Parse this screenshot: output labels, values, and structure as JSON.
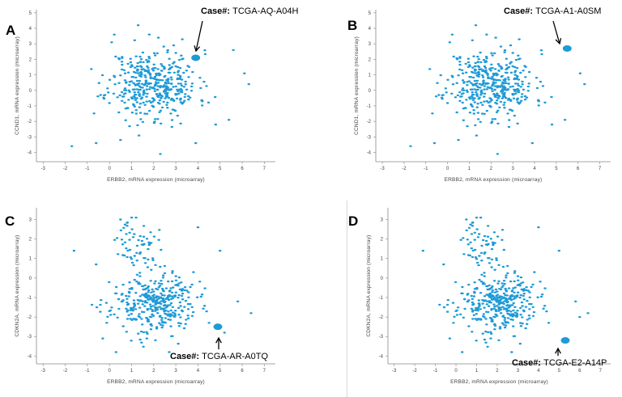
{
  "colors": {
    "point": "#1e9ad6",
    "highlight": "#1e9ad6",
    "axis": "#888888",
    "text": "#444444"
  },
  "chart_data": [
    {
      "panel": "A",
      "type": "scatter",
      "xlabel": "ERBB2, mRNA expression (microarray)",
      "ylabel": "CCND1, mRNA expression (microarray)",
      "xlim": [
        -3.3,
        7.5
      ],
      "ylim": [
        -4.6,
        5.2
      ],
      "xticks": [
        -3,
        -2,
        -1,
        0,
        1,
        2,
        3,
        4,
        5,
        6,
        7
      ],
      "yticks": [
        -4,
        -3,
        -2,
        -1,
        0,
        1,
        2,
        3,
        4,
        5
      ],
      "cloud": {
        "count": 420,
        "seed": 11,
        "cx": 2.0,
        "cy": 0.4,
        "sx": 1.0,
        "sy": 1.1
      },
      "points": [
        [
          -1.7,
          -3.6
        ],
        [
          -0.6,
          -3.4
        ],
        [
          1.3,
          4.2
        ],
        [
          0.1,
          3.1
        ],
        [
          5.6,
          2.6
        ],
        [
          6.1,
          1.1
        ],
        [
          5.4,
          -1.9
        ],
        [
          2.3,
          -4.1
        ],
        [
          3.9,
          -3.4
        ],
        [
          -0.4,
          -0.3
        ],
        [
          6.3,
          0.4
        ],
        [
          4.8,
          -2.2
        ],
        [
          0.5,
          -3.2
        ],
        [
          1.8,
          3.6
        ],
        [
          2.9,
          2.9
        ]
      ],
      "highlight": {
        "x": 3.9,
        "y": 2.1,
        "label_key": "Case#:",
        "label_value": "TCGA-AQ-A04H"
      }
    },
    {
      "panel": "B",
      "type": "scatter",
      "xlabel": "ERBB2, mRNA expression (microarray)",
      "ylabel": "CCND1, mRNA expression (microarray)",
      "xlim": [
        -3.3,
        7.5
      ],
      "ylim": [
        -4.6,
        5.2
      ],
      "xticks": [
        -3,
        -2,
        -1,
        0,
        1,
        2,
        3,
        4,
        5,
        6,
        7
      ],
      "yticks": [
        -4,
        -3,
        -2,
        -1,
        0,
        1,
        2,
        3,
        4,
        5
      ],
      "cloud": {
        "count": 420,
        "seed": 11,
        "cx": 2.0,
        "cy": 0.4,
        "sx": 1.0,
        "sy": 1.1
      },
      "points": [
        [
          -1.7,
          -3.6
        ],
        [
          -0.6,
          -3.4
        ],
        [
          1.3,
          4.2
        ],
        [
          0.1,
          3.1
        ],
        [
          5.6,
          2.6
        ],
        [
          6.1,
          1.1
        ],
        [
          5.4,
          -1.9
        ],
        [
          2.3,
          -4.1
        ],
        [
          3.9,
          -3.4
        ],
        [
          -0.4,
          -0.3
        ],
        [
          6.3,
          0.4
        ],
        [
          4.8,
          -2.2
        ],
        [
          0.5,
          -3.2
        ],
        [
          1.8,
          3.6
        ],
        [
          2.9,
          2.9
        ]
      ],
      "highlight": {
        "x": 5.5,
        "y": 2.7,
        "label_key": "Case#:",
        "label_value": "TCGA-A1-A0SM"
      }
    },
    {
      "panel": "C",
      "type": "scatter",
      "xlabel": "ERBB2, mRNA expression (microarray)",
      "ylabel": "CDKN2A, mRNA expression (microarray)",
      "xlim": [
        -3.3,
        7.5
      ],
      "ylim": [
        -4.4,
        3.6
      ],
      "xticks": [
        -3,
        -2,
        -1,
        0,
        1,
        2,
        3,
        4,
        5,
        6,
        7
      ],
      "yticks": [
        -4,
        -3,
        -2,
        -1,
        0,
        1,
        2,
        3
      ],
      "cloud": {
        "count": 360,
        "seed": 23,
        "cx": 2.0,
        "cy": -1.3,
        "sx": 0.95,
        "sy": 0.75
      },
      "upper": {
        "count": 60,
        "seed": 37,
        "cx": 1.3,
        "cy": 1.7,
        "sx": 0.45,
        "sy": 0.6
      },
      "points": [
        [
          -1.6,
          1.4
        ],
        [
          -0.6,
          0.7
        ],
        [
          0.5,
          3.0
        ],
        [
          1.0,
          3.1
        ],
        [
          4.0,
          2.6
        ],
        [
          5.0,
          1.4
        ],
        [
          5.8,
          -1.2
        ],
        [
          6.4,
          -1.8
        ],
        [
          0.3,
          -3.8
        ],
        [
          -0.3,
          -3.1
        ],
        [
          2.7,
          -3.8
        ],
        [
          4.5,
          -2.3
        ],
        [
          5.2,
          -2.8
        ],
        [
          3.8,
          0.3
        ]
      ],
      "highlight": {
        "x": 4.9,
        "y": -2.5,
        "label_key": "Case#:",
        "label_value": "TCGA-AR-A0TQ"
      }
    },
    {
      "panel": "D",
      "type": "scatter",
      "xlabel": "ERBB2, mRNA expression (microarray)",
      "ylabel": "CDKN2A, mRNA expression (microarray)",
      "xlim": [
        -3.3,
        7.5
      ],
      "ylim": [
        -4.4,
        3.6
      ],
      "xticks": [
        -3,
        -2,
        -1,
        0,
        1,
        2,
        3,
        4,
        5,
        6,
        7
      ],
      "yticks": [
        -4,
        -3,
        -2,
        -1,
        0,
        1,
        2,
        3
      ],
      "cloud": {
        "count": 360,
        "seed": 23,
        "cx": 2.0,
        "cy": -1.3,
        "sx": 0.95,
        "sy": 0.75
      },
      "upper": {
        "count": 60,
        "seed": 37,
        "cx": 1.3,
        "cy": 1.7,
        "sx": 0.45,
        "sy": 0.6
      },
      "points": [
        [
          -1.6,
          1.4
        ],
        [
          -0.6,
          0.7
        ],
        [
          0.5,
          3.0
        ],
        [
          1.0,
          3.1
        ],
        [
          4.0,
          2.6
        ],
        [
          5.0,
          1.4
        ],
        [
          5.8,
          -1.2
        ],
        [
          6.4,
          -1.8
        ],
        [
          0.3,
          -3.8
        ],
        [
          -0.3,
          -3.1
        ],
        [
          2.7,
          -3.8
        ],
        [
          4.5,
          -2.3
        ],
        [
          6.0,
          -2.0
        ],
        [
          3.8,
          0.3
        ]
      ],
      "highlight": {
        "x": 5.3,
        "y": -3.2,
        "label_key": "Case#:",
        "label_value": "TCGA-E2-A14P"
      }
    }
  ]
}
